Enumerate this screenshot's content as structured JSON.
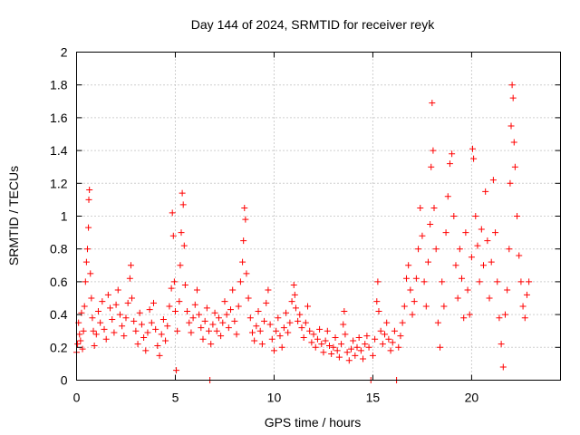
{
  "chart_data": {
    "type": "scatter",
    "title": "Day 144 of 2024, SRMTID for receiver reyk",
    "xlabel": "GPS time / hours",
    "ylabel": "SRMTID / TECUs",
    "xlim": [
      0,
      24.5
    ],
    "ylim": [
      0,
      2
    ],
    "xticks": [
      0,
      5,
      10,
      15,
      20
    ],
    "xtick_labels": [
      "0",
      "5",
      "10",
      "15",
      "20"
    ],
    "yticks": [
      0,
      0.2,
      0.4,
      0.6,
      0.8,
      1,
      1.2,
      1.4,
      1.6,
      1.8,
      2
    ],
    "ytick_labels": [
      "0",
      "0.2",
      "0.4",
      "0.6",
      "0.8",
      "1",
      "1.2",
      "1.4",
      "1.6",
      "1.8",
      "2"
    ],
    "grid": true,
    "marker": "+",
    "color": "#ff0000",
    "series": [
      {
        "name": "SRMTID",
        "points": [
          [
            0.0,
            0.17
          ],
          [
            0.05,
            0.22
          ],
          [
            0.1,
            0.35
          ],
          [
            0.15,
            0.28
          ],
          [
            0.2,
            0.24
          ],
          [
            0.25,
            0.41
          ],
          [
            0.3,
            0.19
          ],
          [
            0.35,
            0.3
          ],
          [
            0.4,
            0.45
          ],
          [
            0.45,
            0.6
          ],
          [
            0.5,
            0.72
          ],
          [
            0.55,
            0.8
          ],
          [
            0.6,
            0.93
          ],
          [
            0.62,
            1.1
          ],
          [
            0.65,
            1.16
          ],
          [
            0.7,
            0.65
          ],
          [
            0.75,
            0.5
          ],
          [
            0.8,
            0.38
          ],
          [
            0.85,
            0.3
          ],
          [
            0.9,
            0.21
          ],
          [
            1.0,
            0.28
          ],
          [
            1.1,
            0.42
          ],
          [
            1.2,
            0.35
          ],
          [
            1.3,
            0.48
          ],
          [
            1.4,
            0.31
          ],
          [
            1.5,
            0.25
          ],
          [
            1.6,
            0.52
          ],
          [
            1.7,
            0.44
          ],
          [
            1.8,
            0.37
          ],
          [
            1.9,
            0.29
          ],
          [
            2.0,
            0.46
          ],
          [
            2.1,
            0.55
          ],
          [
            2.2,
            0.4
          ],
          [
            2.3,
            0.33
          ],
          [
            2.4,
            0.27
          ],
          [
            2.5,
            0.38
          ],
          [
            2.6,
            0.47
          ],
          [
            2.7,
            0.62
          ],
          [
            2.75,
            0.7
          ],
          [
            2.8,
            0.5
          ],
          [
            2.9,
            0.36
          ],
          [
            3.0,
            0.3
          ],
          [
            3.1,
            0.22
          ],
          [
            3.2,
            0.41
          ],
          [
            3.3,
            0.34
          ],
          [
            3.4,
            0.26
          ],
          [
            3.5,
            0.18
          ],
          [
            3.6,
            0.29
          ],
          [
            3.7,
            0.43
          ],
          [
            3.8,
            0.35
          ],
          [
            3.9,
            0.47
          ],
          [
            4.0,
            0.31
          ],
          [
            4.1,
            0.21
          ],
          [
            4.2,
            0.15
          ],
          [
            4.3,
            0.28
          ],
          [
            4.4,
            0.37
          ],
          [
            4.5,
            0.24
          ],
          [
            4.6,
            0.33
          ],
          [
            4.7,
            0.45
          ],
          [
            4.8,
            0.56
          ],
          [
            4.85,
            1.02
          ],
          [
            4.9,
            0.88
          ],
          [
            4.95,
            0.6
          ],
          [
            5.0,
            0.42
          ],
          [
            5.05,
            0.06
          ],
          [
            5.1,
            0.3
          ],
          [
            5.2,
            0.48
          ],
          [
            5.25,
            0.7
          ],
          [
            5.3,
            0.9
          ],
          [
            5.35,
            1.14
          ],
          [
            5.4,
            1.07
          ],
          [
            5.45,
            0.82
          ],
          [
            5.5,
            0.58
          ],
          [
            5.6,
            0.42
          ],
          [
            5.7,
            0.35
          ],
          [
            5.8,
            0.29
          ],
          [
            5.9,
            0.38
          ],
          [
            6.0,
            0.46
          ],
          [
            6.1,
            0.55
          ],
          [
            6.2,
            0.4
          ],
          [
            6.3,
            0.32
          ],
          [
            6.4,
            0.25
          ],
          [
            6.5,
            0.36
          ],
          [
            6.6,
            0.44
          ],
          [
            6.7,
            0.3
          ],
          [
            6.75,
            0.0
          ],
          [
            6.8,
            0.22
          ],
          [
            6.9,
            0.34
          ],
          [
            7.0,
            0.41
          ],
          [
            7.1,
            0.3
          ],
          [
            7.2,
            0.38
          ],
          [
            7.3,
            0.27
          ],
          [
            7.4,
            0.35
          ],
          [
            7.5,
            0.48
          ],
          [
            7.6,
            0.4
          ],
          [
            7.7,
            0.32
          ],
          [
            7.8,
            0.43
          ],
          [
            7.9,
            0.55
          ],
          [
            8.0,
            0.36
          ],
          [
            8.1,
            0.28
          ],
          [
            8.2,
            0.45
          ],
          [
            8.3,
            0.6
          ],
          [
            8.4,
            0.72
          ],
          [
            8.45,
            0.85
          ],
          [
            8.5,
            1.05
          ],
          [
            8.55,
            0.98
          ],
          [
            8.6,
            0.65
          ],
          [
            8.7,
            0.5
          ],
          [
            8.8,
            0.38
          ],
          [
            8.9,
            0.29
          ],
          [
            9.0,
            0.24
          ],
          [
            9.1,
            0.33
          ],
          [
            9.2,
            0.42
          ],
          [
            9.3,
            0.3
          ],
          [
            9.4,
            0.22
          ],
          [
            9.5,
            0.36
          ],
          [
            9.6,
            0.47
          ],
          [
            9.7,
            0.55
          ],
          [
            9.8,
            0.34
          ],
          [
            9.9,
            0.25
          ],
          [
            10.0,
            0.18
          ],
          [
            10.1,
            0.3
          ],
          [
            10.2,
            0.38
          ],
          [
            10.3,
            0.27
          ],
          [
            10.4,
            0.2
          ],
          [
            10.5,
            0.32
          ],
          [
            10.6,
            0.41
          ],
          [
            10.7,
            0.29
          ],
          [
            10.8,
            0.35
          ],
          [
            10.9,
            0.48
          ],
          [
            11.0,
            0.58
          ],
          [
            11.05,
            0.52
          ],
          [
            11.1,
            0.44
          ],
          [
            11.2,
            0.36
          ],
          [
            11.3,
            0.4
          ],
          [
            11.4,
            0.32
          ],
          [
            11.5,
            0.26
          ],
          [
            11.6,
            0.35
          ],
          [
            11.7,
            0.45
          ],
          [
            11.8,
            0.3
          ],
          [
            11.9,
            0.23
          ],
          [
            12.0,
            0.28
          ],
          [
            12.1,
            0.2
          ],
          [
            12.2,
            0.25
          ],
          [
            12.3,
            0.31
          ],
          [
            12.4,
            0.22
          ],
          [
            12.5,
            0.17
          ],
          [
            12.6,
            0.24
          ],
          [
            12.7,
            0.3
          ],
          [
            12.8,
            0.21
          ],
          [
            12.9,
            0.16
          ],
          [
            13.0,
            0.2
          ],
          [
            13.1,
            0.26
          ],
          [
            13.2,
            0.18
          ],
          [
            13.3,
            0.14
          ],
          [
            13.4,
            0.22
          ],
          [
            13.5,
            0.34
          ],
          [
            13.55,
            0.42
          ],
          [
            13.6,
            0.28
          ],
          [
            13.7,
            0.17
          ],
          [
            13.8,
            0.12
          ],
          [
            13.9,
            0.19
          ],
          [
            14.0,
            0.24
          ],
          [
            14.1,
            0.15
          ],
          [
            14.2,
            0.2
          ],
          [
            14.3,
            0.26
          ],
          [
            14.4,
            0.18
          ],
          [
            14.5,
            0.13
          ],
          [
            14.6,
            0.22
          ],
          [
            14.7,
            0.27
          ],
          [
            14.8,
            0.2
          ],
          [
            14.9,
            0.0
          ],
          [
            15.0,
            0.15
          ],
          [
            15.1,
            0.25
          ],
          [
            15.2,
            0.48
          ],
          [
            15.25,
            0.6
          ],
          [
            15.3,
            0.42
          ],
          [
            15.4,
            0.3
          ],
          [
            15.5,
            0.22
          ],
          [
            15.6,
            0.28
          ],
          [
            15.7,
            0.35
          ],
          [
            15.8,
            0.25
          ],
          [
            15.9,
            0.18
          ],
          [
            16.0,
            0.23
          ],
          [
            16.1,
            0.3
          ],
          [
            16.2,
            0.0
          ],
          [
            16.3,
            0.2
          ],
          [
            16.4,
            0.27
          ],
          [
            16.5,
            0.35
          ],
          [
            16.6,
            0.45
          ],
          [
            16.7,
            0.62
          ],
          [
            16.8,
            0.7
          ],
          [
            16.9,
            0.55
          ],
          [
            17.0,
            0.4
          ],
          [
            17.1,
            0.48
          ],
          [
            17.2,
            0.62
          ],
          [
            17.3,
            0.8
          ],
          [
            17.4,
            1.05
          ],
          [
            17.5,
            0.88
          ],
          [
            17.6,
            0.6
          ],
          [
            17.7,
            0.45
          ],
          [
            17.8,
            0.72
          ],
          [
            17.9,
            0.95
          ],
          [
            17.95,
            1.3
          ],
          [
            18.0,
            1.69
          ],
          [
            18.05,
            1.4
          ],
          [
            18.1,
            1.05
          ],
          [
            18.2,
            0.8
          ],
          [
            18.3,
            0.35
          ],
          [
            18.4,
            0.2
          ],
          [
            18.5,
            0.6
          ],
          [
            18.6,
            0.45
          ],
          [
            18.7,
            0.9
          ],
          [
            18.8,
            1.12
          ],
          [
            18.9,
            1.32
          ],
          [
            19.0,
            1.38
          ],
          [
            19.1,
            1.0
          ],
          [
            19.2,
            0.7
          ],
          [
            19.3,
            0.5
          ],
          [
            19.4,
            0.8
          ],
          [
            19.5,
            0.62
          ],
          [
            19.6,
            0.38
          ],
          [
            19.7,
            0.9
          ],
          [
            19.8,
            0.55
          ],
          [
            19.9,
            0.4
          ],
          [
            20.0,
            0.75
          ],
          [
            20.05,
            1.41
          ],
          [
            20.1,
            1.35
          ],
          [
            20.2,
            1.0
          ],
          [
            20.3,
            0.82
          ],
          [
            20.4,
            0.6
          ],
          [
            20.5,
            0.92
          ],
          [
            20.6,
            0.7
          ],
          [
            20.7,
            1.15
          ],
          [
            20.8,
            0.85
          ],
          [
            20.9,
            0.5
          ],
          [
            21.0,
            0.72
          ],
          [
            21.1,
            1.22
          ],
          [
            21.2,
            0.9
          ],
          [
            21.3,
            0.6
          ],
          [
            21.4,
            0.38
          ],
          [
            21.5,
            0.22
          ],
          [
            21.6,
            0.08
          ],
          [
            21.7,
            0.4
          ],
          [
            21.8,
            0.55
          ],
          [
            21.9,
            0.8
          ],
          [
            21.95,
            1.2
          ],
          [
            22.0,
            1.55
          ],
          [
            22.05,
            1.8
          ],
          [
            22.1,
            1.72
          ],
          [
            22.15,
            1.45
          ],
          [
            22.2,
            1.3
          ],
          [
            22.3,
            1.0
          ],
          [
            22.4,
            0.76
          ],
          [
            22.5,
            0.6
          ],
          [
            22.6,
            0.45
          ],
          [
            22.7,
            0.38
          ],
          [
            22.8,
            0.52
          ],
          [
            22.9,
            0.6
          ]
        ]
      }
    ]
  }
}
